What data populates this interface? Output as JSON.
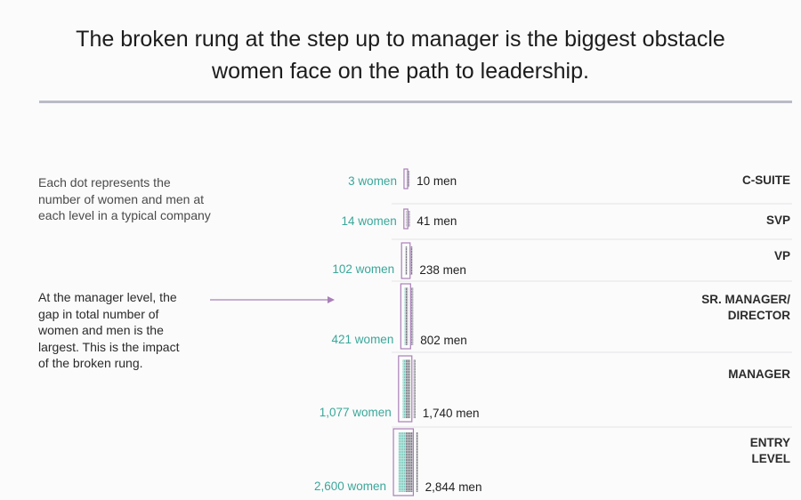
{
  "title_lines": [
    "The broken rung at the step up to manager is the biggest obstacle",
    "women face on the path to leadership."
  ],
  "legend_note_lines": [
    "Each dot represents the",
    "number of women and men at",
    "each level in a typical company"
  ],
  "annotation_lines": [
    "At the manager level, the",
    "gap in total number of",
    "women and men is the",
    "largest. This is the impact",
    "of the broken rung."
  ],
  "colors": {
    "women": "#8fd3c8",
    "women_text": "#3aa79a",
    "men": "#8e8e96",
    "frame": "#a97fb8",
    "row_line": "#e3e3e7",
    "text": "#1f1f1f"
  },
  "chart_data": {
    "type": "table",
    "title": "The broken rung at the step up to manager is the biggest obstacle women face on the path to leadership.",
    "levels": [
      "C-SUITE",
      "SVP",
      "VP",
      "SR. MANAGER/ DIRECTOR",
      "MANAGER",
      "ENTRY LEVEL"
    ],
    "series": [
      {
        "name": "women",
        "values": [
          3,
          14,
          102,
          421,
          1077,
          2600
        ]
      },
      {
        "name": "men",
        "values": [
          10,
          41,
          238,
          802,
          1740,
          2844
        ]
      }
    ],
    "women_labels": [
      "3 women",
      "14 women",
      "102 women",
      "421 women",
      "1,077 women",
      "2,600 women"
    ],
    "men_labels": [
      "10 men",
      "41 men",
      "238 men",
      "802 men",
      "1,740 men",
      "2,844 men"
    ]
  }
}
